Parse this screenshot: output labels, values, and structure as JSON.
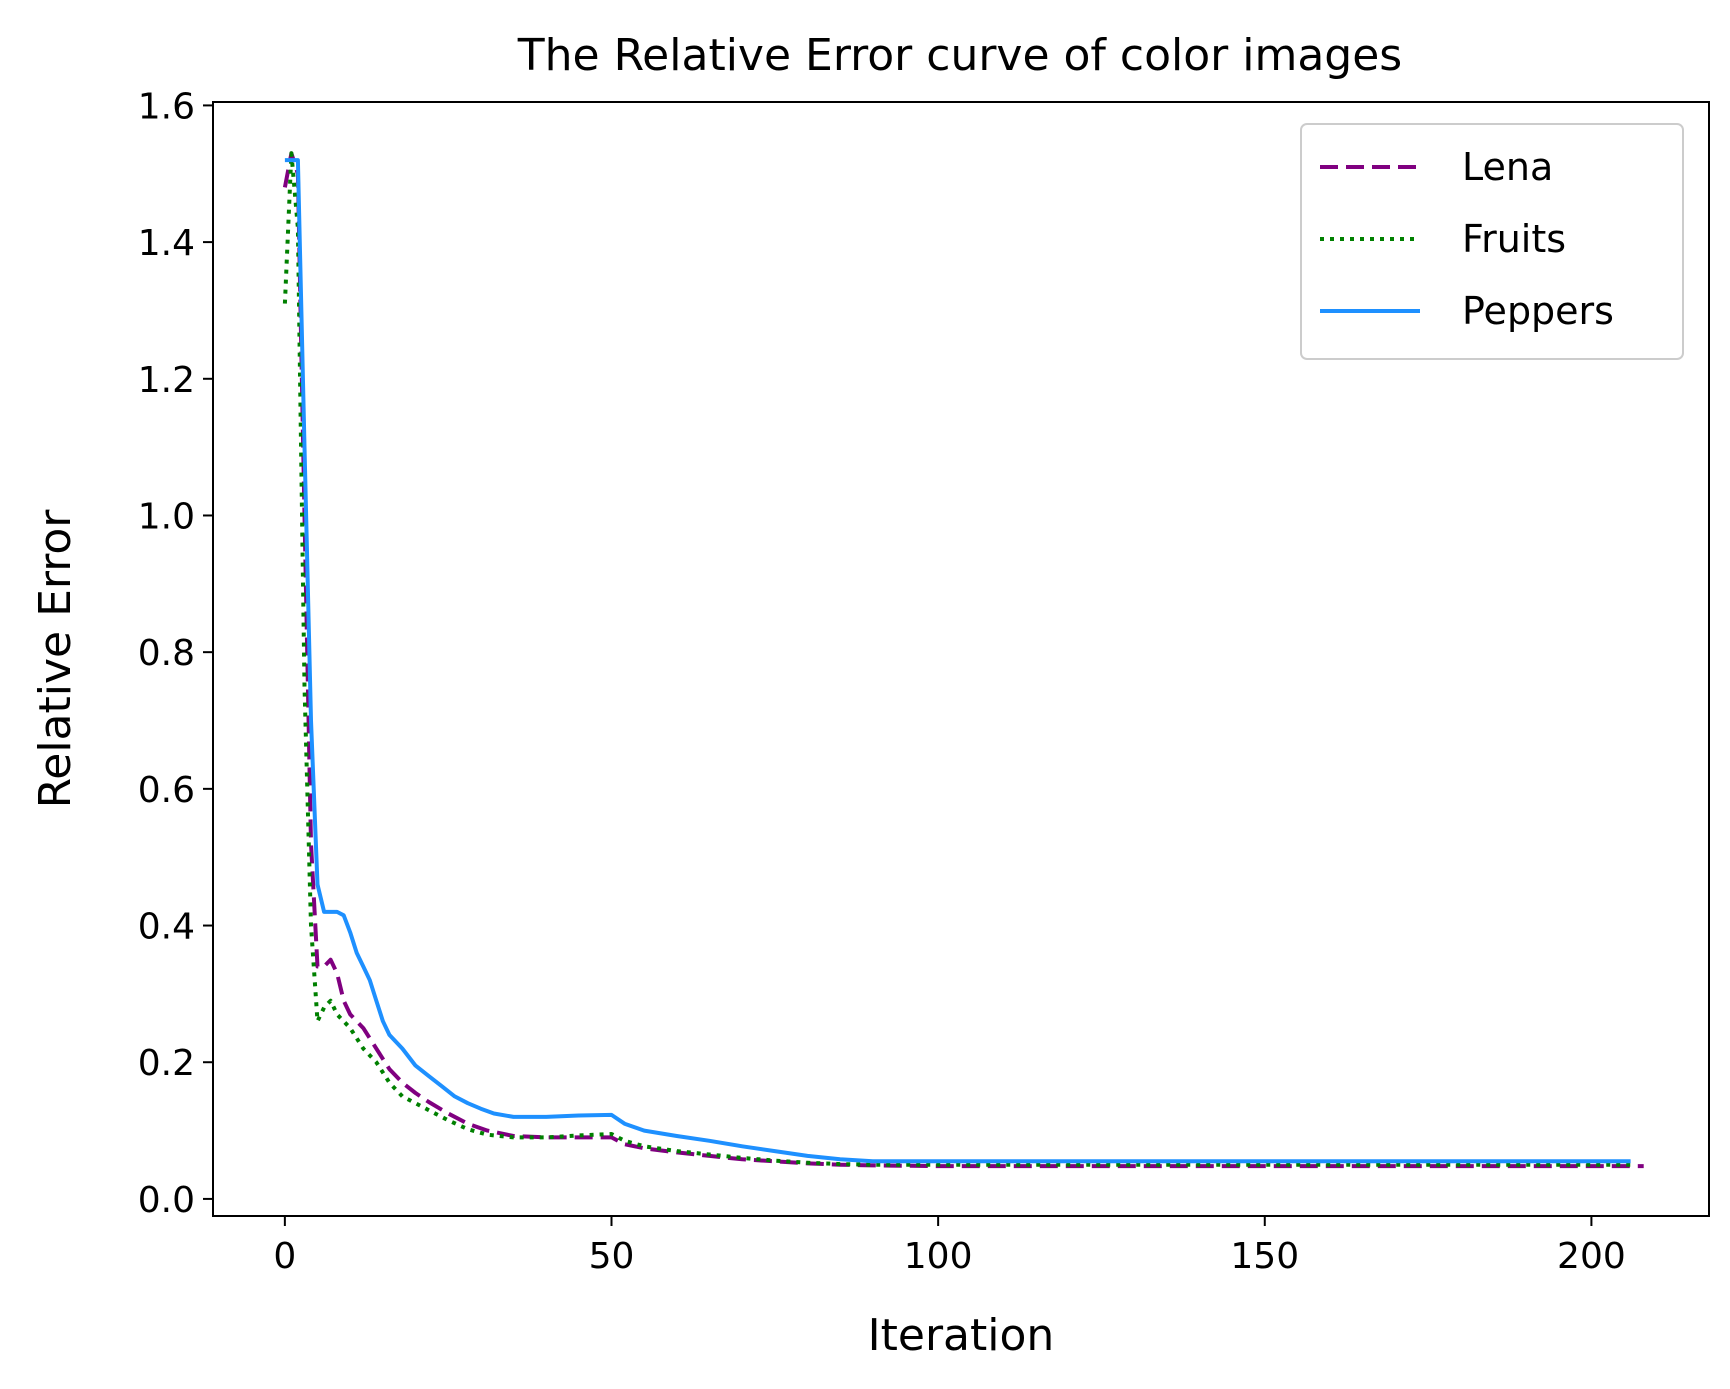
{
  "chart_data": {
    "type": "line",
    "title": "The Relative Error curve of color images",
    "xlabel": "Iteration",
    "ylabel": "Relative Error",
    "xlim": [
      -11,
      218
    ],
    "ylim": [
      -0.025,
      1.605
    ],
    "xticks": [
      0,
      50,
      100,
      150,
      200
    ],
    "xtick_labels": [
      "0",
      "50",
      "100",
      "150",
      "200"
    ],
    "yticks": [
      0.0,
      0.2,
      0.4,
      0.6,
      0.8,
      1.0,
      1.2,
      1.4,
      1.6
    ],
    "ytick_labels": [
      "0.0",
      "0.2",
      "0.4",
      "0.6",
      "0.8",
      "1.0",
      "1.2",
      "1.4",
      "1.6"
    ],
    "grid": false,
    "legend_position": "top-right",
    "series": [
      {
        "name": "Lena",
        "color": "#800080",
        "style": "dashed",
        "points": [
          [
            0,
            1.48
          ],
          [
            1,
            1.53
          ],
          [
            2,
            1.5
          ],
          [
            3,
            1.0
          ],
          [
            4,
            0.52
          ],
          [
            5,
            0.34
          ],
          [
            6,
            0.34
          ],
          [
            7,
            0.35
          ],
          [
            8,
            0.33
          ],
          [
            9,
            0.29
          ],
          [
            10,
            0.27
          ],
          [
            12,
            0.25
          ],
          [
            14,
            0.22
          ],
          [
            16,
            0.19
          ],
          [
            18,
            0.17
          ],
          [
            20,
            0.155
          ],
          [
            22,
            0.142
          ],
          [
            25,
            0.125
          ],
          [
            28,
            0.11
          ],
          [
            31,
            0.1
          ],
          [
            35,
            0.092
          ],
          [
            40,
            0.09
          ],
          [
            45,
            0.09
          ],
          [
            50,
            0.09
          ],
          [
            52,
            0.08
          ],
          [
            55,
            0.074
          ],
          [
            60,
            0.068
          ],
          [
            65,
            0.063
          ],
          [
            70,
            0.058
          ],
          [
            75,
            0.055
          ],
          [
            80,
            0.052
          ],
          [
            85,
            0.05
          ],
          [
            90,
            0.049
          ],
          [
            100,
            0.048
          ],
          [
            120,
            0.048
          ],
          [
            150,
            0.048
          ],
          [
            180,
            0.048
          ],
          [
            208,
            0.048
          ]
        ]
      },
      {
        "name": "Fruits",
        "color": "#008000",
        "style": "dotted",
        "points": [
          [
            0,
            1.31
          ],
          [
            1,
            1.53
          ],
          [
            2,
            1.42
          ],
          [
            3,
            0.75
          ],
          [
            4,
            0.4
          ],
          [
            5,
            0.26
          ],
          [
            6,
            0.28
          ],
          [
            7,
            0.29
          ],
          [
            8,
            0.27
          ],
          [
            10,
            0.25
          ],
          [
            12,
            0.22
          ],
          [
            14,
            0.2
          ],
          [
            16,
            0.17
          ],
          [
            18,
            0.15
          ],
          [
            20,
            0.14
          ],
          [
            22,
            0.13
          ],
          [
            25,
            0.115
          ],
          [
            28,
            0.102
          ],
          [
            31,
            0.094
          ],
          [
            35,
            0.09
          ],
          [
            40,
            0.09
          ],
          [
            45,
            0.093
          ],
          [
            50,
            0.095
          ],
          [
            52,
            0.085
          ],
          [
            55,
            0.077
          ],
          [
            60,
            0.07
          ],
          [
            65,
            0.065
          ],
          [
            70,
            0.06
          ],
          [
            75,
            0.056
          ],
          [
            80,
            0.053
          ],
          [
            85,
            0.051
          ],
          [
            90,
            0.05
          ],
          [
            100,
            0.05
          ],
          [
            120,
            0.05
          ],
          [
            150,
            0.05
          ],
          [
            180,
            0.05
          ],
          [
            206,
            0.05
          ]
        ]
      },
      {
        "name": "Peppers",
        "color": "#1E90FF",
        "style": "solid",
        "points": [
          [
            0,
            1.52
          ],
          [
            1,
            1.52
          ],
          [
            2,
            1.52
          ],
          [
            3,
            1.1
          ],
          [
            4,
            0.7
          ],
          [
            5,
            0.46
          ],
          [
            6,
            0.42
          ],
          [
            7,
            0.42
          ],
          [
            8,
            0.42
          ],
          [
            9,
            0.415
          ],
          [
            10,
            0.39
          ],
          [
            11,
            0.36
          ],
          [
            12,
            0.34
          ],
          [
            13,
            0.32
          ],
          [
            14,
            0.29
          ],
          [
            15,
            0.26
          ],
          [
            16,
            0.24
          ],
          [
            18,
            0.22
          ],
          [
            20,
            0.195
          ],
          [
            22,
            0.18
          ],
          [
            24,
            0.165
          ],
          [
            26,
            0.15
          ],
          [
            28,
            0.14
          ],
          [
            30,
            0.132
          ],
          [
            32,
            0.125
          ],
          [
            35,
            0.12
          ],
          [
            40,
            0.12
          ],
          [
            45,
            0.122
          ],
          [
            50,
            0.123
          ],
          [
            52,
            0.11
          ],
          [
            55,
            0.1
          ],
          [
            60,
            0.092
          ],
          [
            65,
            0.085
          ],
          [
            70,
            0.077
          ],
          [
            75,
            0.07
          ],
          [
            80,
            0.063
          ],
          [
            85,
            0.058
          ],
          [
            90,
            0.055
          ],
          [
            100,
            0.055
          ],
          [
            120,
            0.055
          ],
          [
            150,
            0.055
          ],
          [
            180,
            0.055
          ],
          [
            206,
            0.055
          ]
        ]
      }
    ]
  }
}
